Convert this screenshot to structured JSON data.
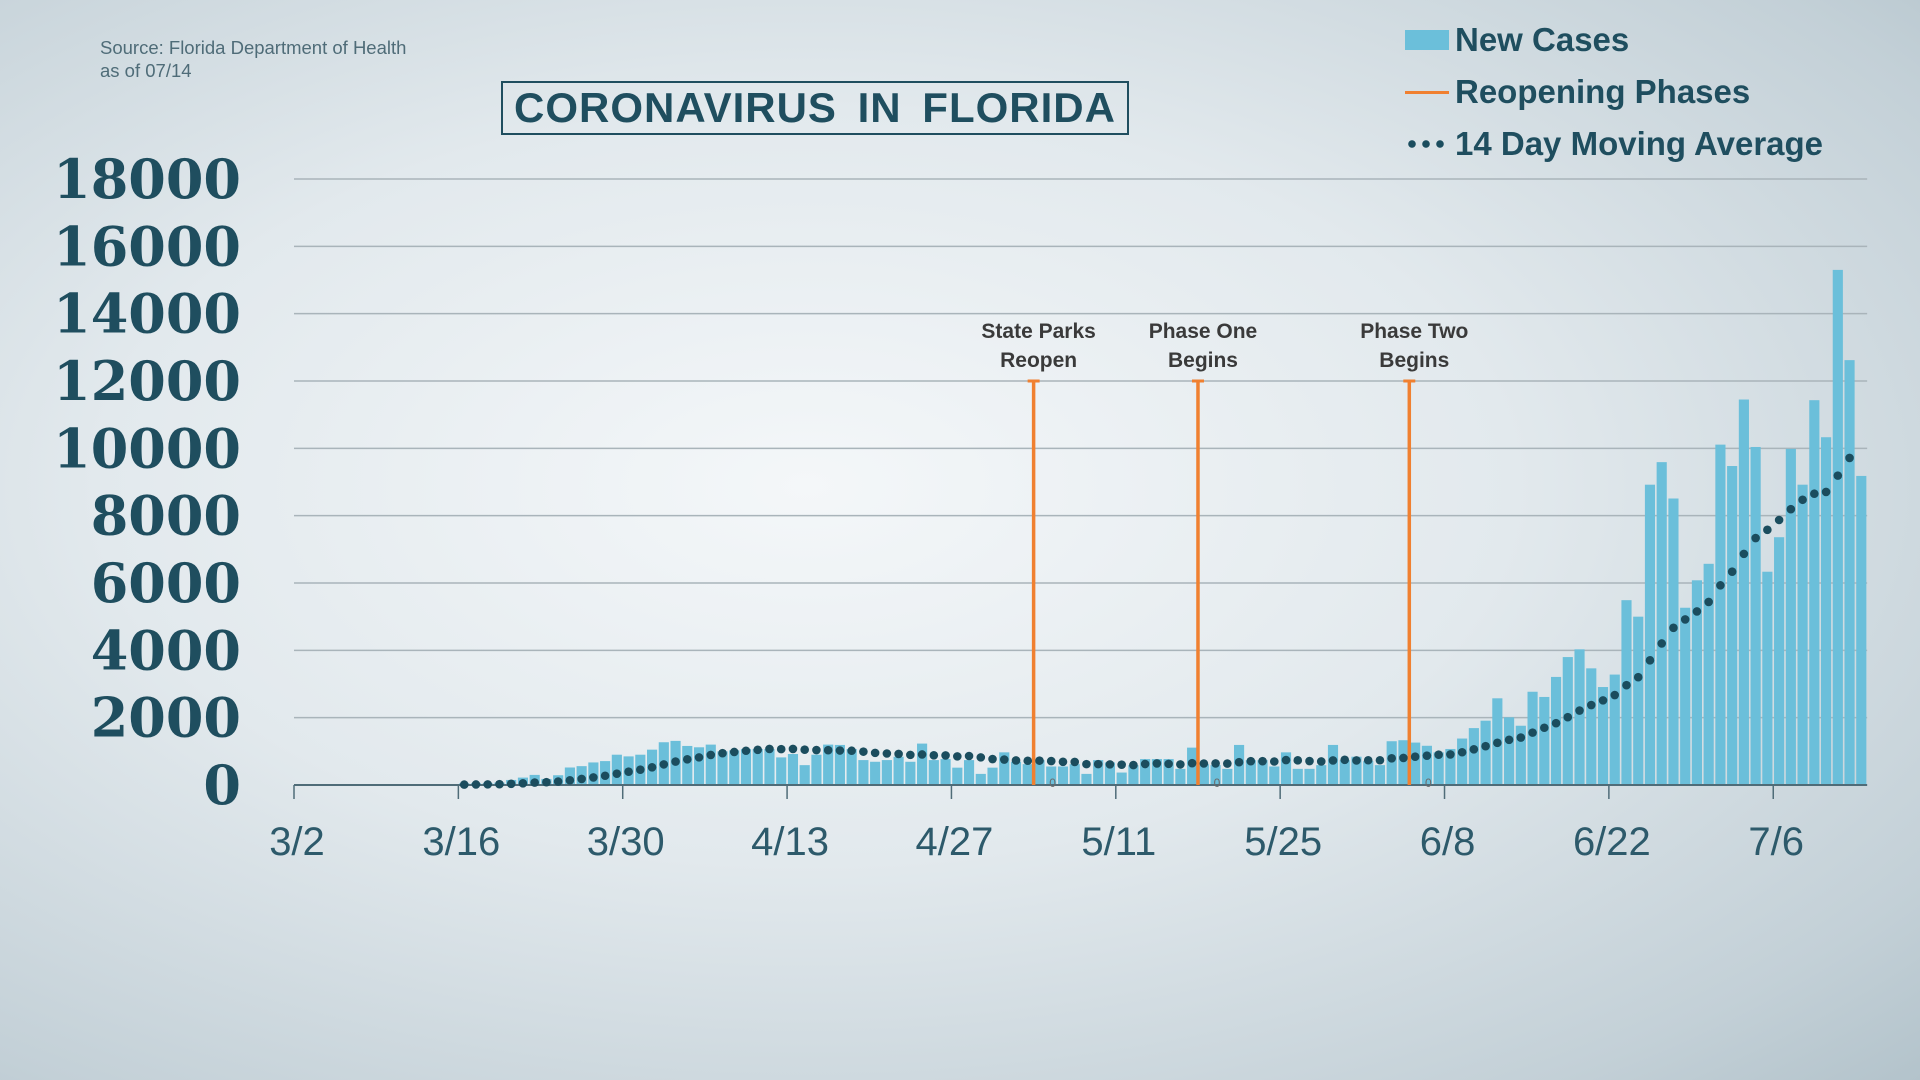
{
  "source": {
    "line1": "Source: Florida Department of Health",
    "line2": "as of 07/14"
  },
  "title": "CORONAVIRUS IN FLORIDA",
  "colors": {
    "bars": "#6bbfda",
    "phases": "#f08030",
    "moving_average": "#1b4d5e",
    "text": "#1f4e5f"
  },
  "chart_data": {
    "type": "bar",
    "title": "CORONAVIRUS IN FLORIDA",
    "start_date": "3/2",
    "x_tick_labels": [
      "3/2",
      "3/16",
      "3/30",
      "4/13",
      "4/27",
      "5/11",
      "5/25",
      "6/8",
      "6/22",
      "7/6"
    ],
    "y_tick_labels": [
      "0",
      "2000",
      "4000",
      "6000",
      "8000",
      "10000",
      "12000",
      "14000",
      "16000",
      "18000"
    ],
    "ylim": [
      0,
      18000
    ],
    "grid": "horizontal",
    "legend_position": "top-right",
    "legend": [
      {
        "label": "New Cases",
        "kind": "bar"
      },
      {
        "label": "Reopening Phases",
        "kind": "line"
      },
      {
        "label": "14 Day Moving Average",
        "kind": "dots"
      }
    ],
    "series": [
      {
        "name": "New Cases",
        "values": [
          0,
          0,
          0,
          0,
          0,
          5,
          0,
          10,
          10,
          10,
          15,
          20,
          20,
          25,
          50,
          50,
          50,
          70,
          150,
          220,
          300,
          180,
          290,
          520,
          560,
          670,
          710,
          900,
          850,
          900,
          1050,
          1270,
          1310,
          1160,
          1120,
          1200,
          1000,
          1030,
          1070,
          1070,
          1070,
          820,
          920,
          590,
          900,
          1200,
          1190,
          1070,
          740,
          690,
          740,
          840,
          690,
          1230,
          740,
          770,
          515,
          740,
          330,
          515,
          970,
          690,
          620,
          740,
          550,
          550,
          620,
          330,
          740,
          670,
          370,
          590,
          770,
          770,
          770,
          480,
          1110,
          620,
          590,
          480,
          1190,
          740,
          740,
          550,
          970,
          480,
          480,
          590,
          1190,
          740,
          840,
          710,
          590,
          1300,
          1330,
          1260,
          1165,
          970,
          1070,
          1380,
          1690,
          1910,
          2575,
          2010,
          1760,
          2770,
          2615,
          3210,
          3800,
          4030,
          3465,
          2910,
          3280,
          5490,
          5000,
          8920,
          9590,
          8510,
          5265,
          6080,
          6570,
          10110,
          9475,
          11450,
          10040,
          6335,
          7360,
          9985,
          8920,
          11430,
          10330,
          15300,
          12620,
          9180
        ]
      },
      {
        "name": "14 Day Moving Average",
        "window": 14
      }
    ],
    "annotations": [
      {
        "label_line1": "State Parks",
        "label_line2": "Reopen",
        "date": "5/4",
        "value": 12000,
        "base_label": "0"
      },
      {
        "label_line1": "Phase One",
        "label_line2": "Begins",
        "date": "5/18",
        "value": 12000,
        "base_label": "0"
      },
      {
        "label_line1": "Phase Two",
        "label_line2": "Begins",
        "date": "6/5",
        "value": 12000,
        "base_label": "0"
      }
    ]
  }
}
